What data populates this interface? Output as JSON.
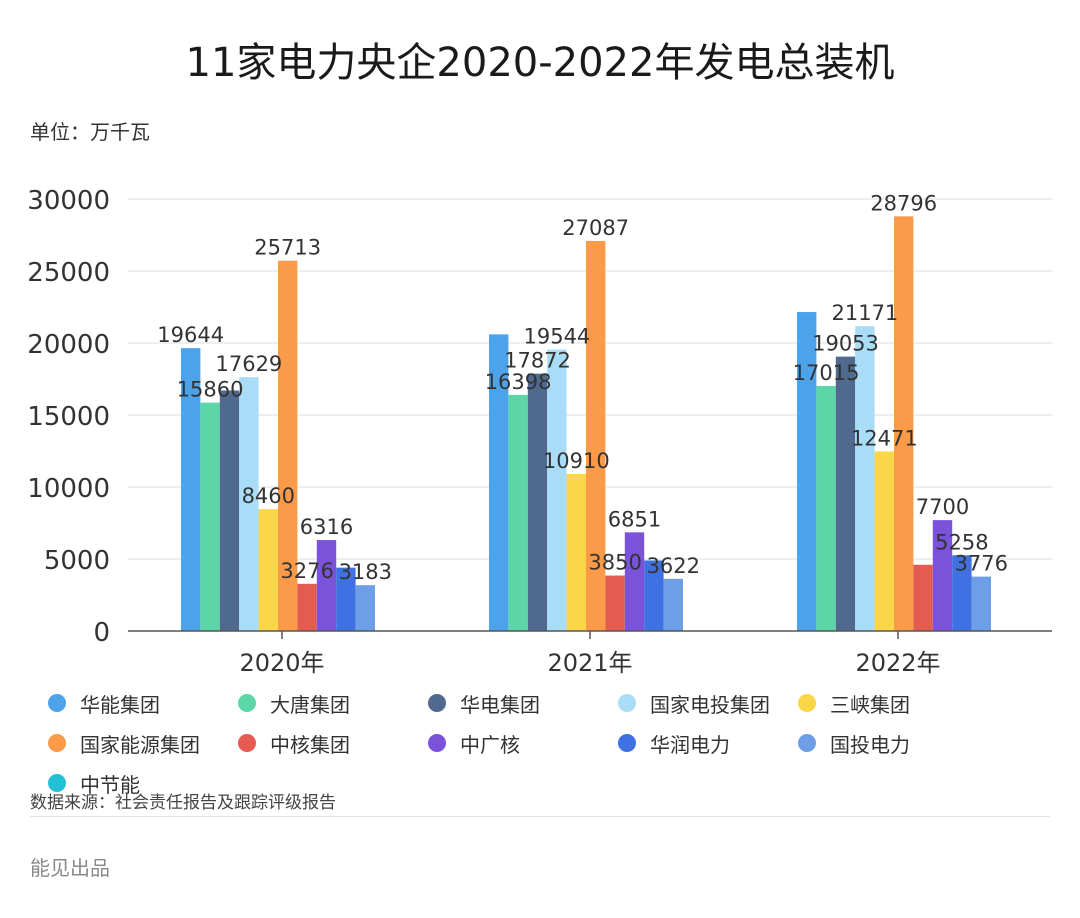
{
  "header": {
    "title": "11家电力央企2020-2022年发电总装机",
    "unit": "单位：万千瓦"
  },
  "legend": [
    {
      "label": "华能集团",
      "color": "#4da3ea"
    },
    {
      "label": "大唐集团",
      "color": "#5dd6a7"
    },
    {
      "label": "华电集团",
      "color": "#4f6a8e"
    },
    {
      "label": "国家电投集团",
      "color": "#a8dcf7"
    },
    {
      "label": "三峡集团",
      "color": "#fbd649"
    },
    {
      "label": "国家能源集团",
      "color": "#fb9a48"
    },
    {
      "label": "中核集团",
      "color": "#e45b52"
    },
    {
      "label": "中广核",
      "color": "#7a53d8"
    },
    {
      "label": "华润电力",
      "color": "#3f71e2"
    },
    {
      "label": "国投电力",
      "color": "#6f9ee8"
    },
    {
      "label": "中节能",
      "color": "#23c1d6"
    }
  ],
  "chart_data": {
    "type": "bar",
    "title": "11家电力央企2020-2022年发电总装机",
    "ylabel": "单位：万千瓦",
    "categories": [
      "2020年",
      "2021年",
      "2022年"
    ],
    "ylim": [
      0,
      30000
    ],
    "yticks": [
      "0",
      "5000",
      "10000",
      "15000",
      "20000",
      "25000",
      "30000"
    ],
    "grid": true,
    "legend_position": "bottom",
    "series": [
      {
        "name": "华能集团",
        "color": "#4da3ea",
        "values": [
          19644,
          20600,
          22150
        ]
      },
      {
        "name": "大唐集团",
        "color": "#5dd6a7",
        "values": [
          15860,
          16398,
          17015
        ]
      },
      {
        "name": "华电集团",
        "color": "#4f6a8e",
        "values": [
          16700,
          17872,
          19053
        ]
      },
      {
        "name": "国家电投集团",
        "color": "#a8dcf7",
        "values": [
          17629,
          19544,
          21171
        ]
      },
      {
        "name": "三峡集团",
        "color": "#fbd649",
        "values": [
          8460,
          10910,
          12471
        ]
      },
      {
        "name": "国家能源集团",
        "color": "#fb9a48",
        "values": [
          25713,
          27087,
          28796
        ]
      },
      {
        "name": "中核集团",
        "color": "#e45b52",
        "values": [
          3276,
          3850,
          4600
        ]
      },
      {
        "name": "中广核",
        "color": "#7a53d8",
        "values": [
          6316,
          6851,
          7700
        ]
      },
      {
        "name": "华润电力",
        "color": "#3f71e2",
        "values": [
          4400,
          4900,
          5258
        ]
      },
      {
        "name": "国投电力",
        "color": "#6f9ee8",
        "values": [
          3183,
          3622,
          3776
        ]
      },
      {
        "name": "中节能",
        "color": "#23c1d6",
        "values": [
          0,
          0,
          0
        ]
      }
    ],
    "data_labels": [
      {
        "text": "19644",
        "series": 0,
        "category": 0
      },
      {
        "text": "15860",
        "series": 1,
        "category": 0
      },
      {
        "text": "17629",
        "series": 3,
        "category": 0
      },
      {
        "text": "8460",
        "series": 4,
        "category": 0
      },
      {
        "text": "25713",
        "series": 5,
        "category": 0
      },
      {
        "text": "3276",
        "series": 6,
        "category": 0
      },
      {
        "text": "6316",
        "series": 7,
        "category": 0
      },
      {
        "text": "3183",
        "series": 9,
        "category": 0
      },
      {
        "text": "16398",
        "series": 1,
        "category": 1
      },
      {
        "text": "17872",
        "series": 2,
        "category": 1
      },
      {
        "text": "19544",
        "series": 3,
        "category": 1
      },
      {
        "text": "10910",
        "series": 4,
        "category": 1
      },
      {
        "text": "27087",
        "series": 5,
        "category": 1
      },
      {
        "text": "3850",
        "series": 6,
        "category": 1
      },
      {
        "text": "6851",
        "series": 7,
        "category": 1
      },
      {
        "text": "3622",
        "series": 9,
        "category": 1
      },
      {
        "text": "17015",
        "series": 1,
        "category": 2
      },
      {
        "text": "19053",
        "series": 2,
        "category": 2
      },
      {
        "text": "21171",
        "series": 3,
        "category": 2
      },
      {
        "text": "12471",
        "series": 4,
        "category": 2
      },
      {
        "text": "28796",
        "series": 5,
        "category": 2
      },
      {
        "text": "7700",
        "series": 7,
        "category": 2
      },
      {
        "text": "5258",
        "series": 8,
        "category": 2
      },
      {
        "text": "3776",
        "series": 9,
        "category": 2
      }
    ]
  },
  "footer": {
    "source": "数据来源：社会责任报告及跟踪评级报告",
    "brand": "能见出品"
  }
}
